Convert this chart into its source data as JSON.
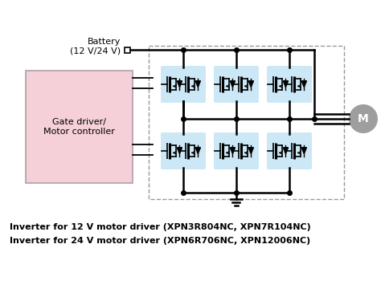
{
  "bg_color": "#ffffff",
  "text_line1": "Inverter for 12 V motor driver (XPN3R804NC, XPN7R104NC)",
  "text_line2": "Inverter for 24 V motor driver (XPN6R706NC, XPN12006NC)",
  "battery_label": "Battery\n(12 V/24 V)",
  "gate_driver_label": "Gate driver/\nMotor controller",
  "gate_box_fill": "#f5d0d8",
  "mosfet_fill": "#cce8f6",
  "dashed_box_color": "#999999",
  "motor_fill": "#9e9e9e",
  "motor_label": "M",
  "line_color": "#000000",
  "text_color": "#000000",
  "font_size_gate": 8,
  "font_size_text": 8,
  "font_size_motor": 10,
  "font_size_battery": 8
}
